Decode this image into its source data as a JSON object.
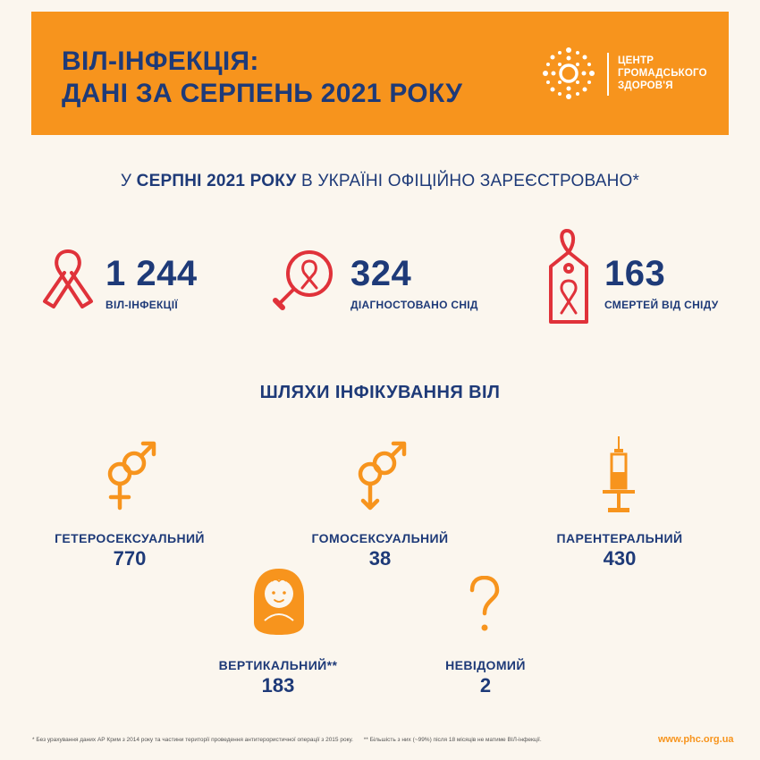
{
  "banner": {
    "title_line1": "ВІЛ-ІНФЕКЦІЯ:",
    "title_line2": "ДАНІ ЗА СЕРПЕНЬ 2021 РОКУ",
    "logo_line1": "ЦЕНТР",
    "logo_line2": "ГРОМАДСЬКОГО",
    "logo_line3": "ЗДОРОВ'Я"
  },
  "headline": {
    "part1": "У ",
    "part2": "СЕРПНІ 2021 РОКУ",
    "part3": " В УКРАЇНІ ОФІЦІЙНО ЗАРЕЄСТРОВАНО*"
  },
  "stats": [
    {
      "value": "1 244",
      "label": "ВІЛ-ІНФЕКЦІЇ",
      "icon": "ribbon-icon"
    },
    {
      "value": "324",
      "label": "ДІАГНОСТОВАНО СНІД",
      "icon": "magnifier-ribbon-icon"
    },
    {
      "value": "163",
      "label": "СМЕРТЕЙ ВІД СНІДУ",
      "icon": "tag-ribbon-icon"
    }
  ],
  "routes_title": "ШЛЯХИ ІНФІКУВАННЯ ВІЛ",
  "routes": [
    {
      "label": "ГЕТЕРОСЕКСУАЛЬНИЙ",
      "value": "770",
      "icon": "heterosexual-icon"
    },
    {
      "label": "ГОМОСЕКСУАЛЬНИЙ",
      "value": "38",
      "icon": "homosexual-icon"
    },
    {
      "label": "ПАРЕНТЕРАЛЬНИЙ",
      "value": "430",
      "icon": "syringe-icon"
    },
    {
      "label": "ВЕРТИКАЛЬНИЙ**",
      "value": "183",
      "icon": "baby-icon"
    },
    {
      "label": "НЕВІДОМИЙ",
      "value": "2",
      "icon": "question-icon"
    }
  ],
  "footnote": {
    "note1": "* Без урахування даних АР Крим з 2014 року та частини території проведення антитерористичної операції з 2015 року.",
    "note2": "** Більшість з них (~99%) після 18 місяців не матиме ВІЛ-інфекції."
  },
  "website": "www.phc.org.ua",
  "colors": {
    "orange": "#f7941d",
    "navy": "#1e3a78",
    "red": "#e0323a",
    "background": "#fbf6ee"
  }
}
